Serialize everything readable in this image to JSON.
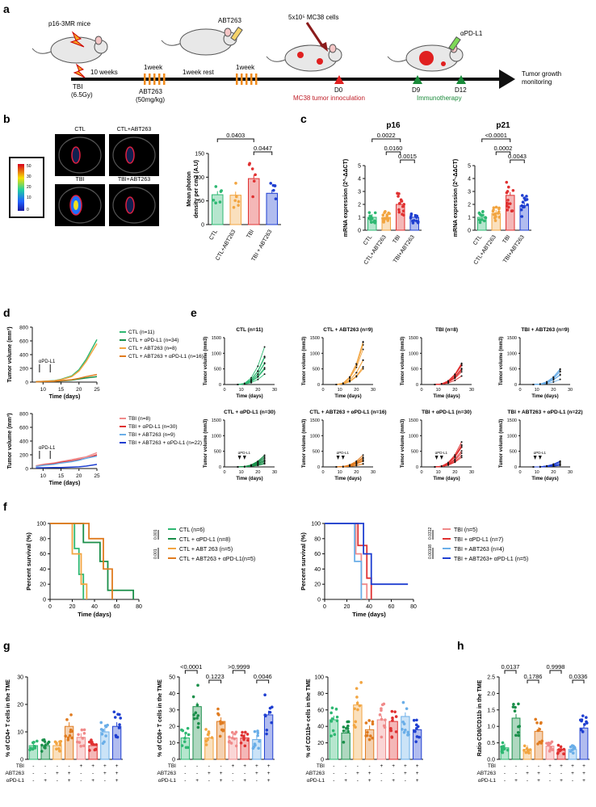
{
  "colors": {
    "ctl": "#2eb872",
    "ctl_apd": "#1a8f4a",
    "abt": "#f2a541",
    "abt_apd": "#e07b1f",
    "tbi": "#f08a8a",
    "tbi_apd": "#e03131",
    "tbiabt": "#6aaee8",
    "tbiabt_apd": "#1f3fd1",
    "red": "#c0202a",
    "green": "#1a8a3a"
  },
  "panels": {
    "a": "a",
    "b": "b",
    "c": "c",
    "d": "d",
    "e": "e",
    "f": "f",
    "g": "g",
    "h": "h"
  },
  "a": {
    "mice_label": "p16-3MR mice",
    "weeks10": "10 weeks",
    "tbi": "TBI",
    "tbi_dose": "(6.5Gy)",
    "abt_top": "ABT263",
    "wk1a": "1week",
    "wk1b": "1week",
    "rest": "1week rest",
    "abt_dose": "ABT263",
    "abt_dose2": "(50mg/kg)",
    "cells": "5x10⁵ MC38 cells",
    "d0": "D0",
    "inoc": "MC38 tumor innoculation",
    "d9": "D9",
    "d12": "D12",
    "immuno": "Immunotherapy",
    "apdl1": "αPD-L1",
    "growth1": "Tumor growth",
    "growth2": "monitoring"
  },
  "b": {
    "images": [
      "CTL",
      "CTL+ABT263",
      "TBI",
      "TBI+ABT263"
    ],
    "scale": [
      "50",
      "30",
      "20",
      "10",
      "0"
    ],
    "ylabel1": "Mean photon",
    "ylabel2": "density per cm2 (A.U)",
    "yticks": [
      "0",
      "50",
      "100",
      "150"
    ],
    "p1": "0.0403",
    "p2": "0.0447",
    "chart_data": {
      "type": "bar",
      "categories": [
        "CTL",
        "CTL+ABT263",
        "TBI",
        "TBI + ABT263"
      ],
      "values": [
        63,
        62,
        97,
        66
      ],
      "ylim": [
        0,
        150
      ],
      "ylabel": "Mean photon density per cm2 (A.U)"
    }
  },
  "c": {
    "title1": "p16",
    "title2": "p21",
    "ylabel": "mRNA expression (2^-ΔΔCT)",
    "yticks": [
      "0",
      "1",
      "2",
      "3",
      "4",
      "5"
    ],
    "p16_p": [
      "0.0022",
      "0.0160",
      "0.0015"
    ],
    "p21_p": [
      "<0.0001",
      "0.0002",
      "0.0043"
    ],
    "chart_data": [
      {
        "type": "bar",
        "title": "p16",
        "categories": [
          "CTL",
          "CTL+ABT263",
          "TBI",
          "TBI+ABT263"
        ],
        "values": [
          1.0,
          1.0,
          2.0,
          1.0
        ],
        "ylim": [
          0,
          5
        ]
      },
      {
        "type": "bar",
        "title": "p21",
        "categories": [
          "CTL",
          "CTL+ABT263",
          "TBI",
          "TBI+ABT263"
        ],
        "values": [
          1.0,
          1.3,
          2.7,
          1.9
        ],
        "ylim": [
          0,
          5
        ]
      }
    ]
  },
  "d": {
    "ylabel": "Tumor volume (mm³)",
    "xlabel": "Time (days)",
    "yticks": [
      "0",
      "200",
      "400",
      "600",
      "800"
    ],
    "xticks": [
      "10",
      "15",
      "20",
      "25"
    ],
    "apdl1": "αPD-L1",
    "legend_top": [
      "CTL (n=11)",
      "CTL + αPD-L1 (n=34)",
      "CTL + ABT263 (n=8)",
      "CTL + ABT263 + αPD-L1 (n=16)"
    ],
    "legend_bot": [
      "TBI (n=8)",
      "TBI + αPD-L1 (n=30)",
      "TBI + ABT263 (n=9)",
      "TBI + ABT263 + αPD-L1 (n=22)"
    ],
    "chart_data": [
      {
        "type": "line",
        "x": [
          8,
          10,
          13,
          15,
          18,
          20,
          22,
          25
        ],
        "series": [
          {
            "name": "CTL (n=11)",
            "values": [
              5,
              10,
              20,
              40,
              90,
              180,
              330,
              620
            ]
          },
          {
            "name": "CTL + αPD-L1 (n=34)",
            "values": [
              5,
              8,
              12,
              18,
              30,
              45,
              60,
              80
            ]
          },
          {
            "name": "CTL + ABT263 (n=8)",
            "values": [
              5,
              10,
              18,
              35,
              80,
              160,
              300,
              560
            ]
          },
          {
            "name": "CTL + ABT263 + αPD-L1 (n=16)",
            "values": [
              5,
              8,
              12,
              20,
              35,
              55,
              80,
              110
            ]
          }
        ],
        "ylim": [
          0,
          800
        ]
      },
      {
        "type": "line",
        "x": [
          8,
          10,
          13,
          15,
          18,
          20,
          22,
          25
        ],
        "series": [
          {
            "name": "TBI (n=8)",
            "values": [
              40,
              60,
              80,
              100,
              130,
              150,
              170,
              230
            ]
          },
          {
            "name": "TBI + αPD-L1 (n=30)",
            "values": [
              30,
              50,
              70,
              90,
              110,
              130,
              150,
              200
            ]
          },
          {
            "name": "TBI + ABT263 (n=9)",
            "values": [
              30,
              45,
              60,
              80,
              100,
              120,
              150,
              180
            ]
          },
          {
            "name": "TBI + ABT263 + αPD-L1 (n=22)",
            "values": [
              10,
              12,
              15,
              15,
              20,
              25,
              35,
              60
            ]
          }
        ],
        "ylim": [
          0,
          800
        ]
      }
    ]
  },
  "e": {
    "titles": [
      "CTL (n=11)",
      "CTL + ABT263 (n=9)",
      "TBI (n=8)",
      "TBI + ABT263 (n=9)",
      "CTL + αPD-L1 (n=30)",
      "CTL + ABT263 + αPD-L1 (n=16)",
      "TBI + αPD-L1 (n=30)",
      "TBI + ABT263 + αPD-L1 (n=22)"
    ],
    "ylabels": [
      "Tumor volume (mm3)",
      "Tumor volume (mm3)",
      "Tumor volume (mm3)",
      "Tumor volume (mm3)",
      "Tumor volume (mm3)",
      "Tumor volume (mm3)",
      "Tumor volume (mm3)",
      "Tumor volume (mm3)"
    ],
    "xlabel": "Time (days)",
    "yticks": [
      "0",
      "500",
      "1000",
      "1500"
    ],
    "xticks": [
      "0",
      "10",
      "20",
      "30"
    ],
    "apd": "αPD-L1"
  },
  "f": {
    "ylabel": "Percent survival (%)",
    "xlabel": "Time (days)",
    "yticks": [
      "0",
      "20",
      "40",
      "60",
      "80",
      "100"
    ],
    "xticks": [
      "0",
      "20",
      "40",
      "60",
      "80"
    ],
    "legend_left": [
      "CTL (n=6)",
      "CTL + αPD-L1 (n=8)",
      "CTL + ABT 263 (n=5)",
      "CTL + ABT263 + αPD-L1(n=5)"
    ],
    "legend_right": [
      "TBI (n=5)",
      "TBI + αPD-L1 (n=7)",
      "TBI + ABT263 (n=4)",
      "TBI + ABT263+ αPD-L1 (n=5)"
    ],
    "p_left": [
      "0.001",
      "0.001"
    ],
    "p_right": [
      "0.0312",
      "0.00108"
    ]
  },
  "g": {
    "ylabels": [
      "% of CD4+ T cells in the TME",
      "% of CD8+ T cells in the TME",
      "% of CD11b+ cells in the TME"
    ],
    "rows": [
      "TBI",
      "ABT263",
      "αPD-L1"
    ],
    "tbi": [
      "-",
      "-",
      "-",
      "-",
      "+",
      "+",
      "+",
      "+"
    ],
    "abt": [
      "-",
      "-",
      "+",
      "+",
      "-",
      "-",
      "+",
      "+"
    ],
    "apd": [
      "-",
      "+",
      "-",
      "+",
      "-",
      "+",
      "-",
      "+"
    ],
    "cd4_yticks": [
      "0",
      "10",
      "20",
      "30"
    ],
    "cd8_yticks": [
      "0",
      "10",
      "20",
      "30",
      "40",
      "50"
    ],
    "cd11_yticks": [
      "0",
      "20",
      "40",
      "60",
      "80",
      "100"
    ],
    "cd8_p": [
      "<0.0001",
      "0.1223",
      ">0.9999",
      "0.0046"
    ],
    "chart_data": [
      {
        "type": "bar",
        "title": "CD4",
        "values": [
          5,
          5,
          5,
          12,
          8,
          5,
          10,
          12
        ],
        "ylim": [
          0,
          30
        ]
      },
      {
        "type": "bar",
        "title": "CD8",
        "values": [
          13,
          32,
          13,
          23,
          13,
          13,
          12,
          27
        ],
        "ylim": [
          0,
          50
        ]
      },
      {
        "type": "bar",
        "title": "CD11b",
        "values": [
          48,
          32,
          66,
          36,
          48,
          46,
          52,
          36
        ],
        "ylim": [
          0,
          100
        ]
      }
    ]
  },
  "h": {
    "ylabel": "Ratio CD8/CD11b in the TME",
    "yticks": [
      "0.0",
      "0.5",
      "1.0",
      "1.5",
      "2.0",
      "2.5"
    ],
    "p": [
      "0.0137",
      "0.1786",
      "0.9998",
      "0.0336"
    ],
    "chart_data": {
      "type": "bar",
      "values": [
        0.35,
        1.25,
        0.3,
        0.85,
        0.4,
        0.3,
        0.3,
        0.95
      ],
      "ylim": [
        0,
        2.5
      ]
    }
  }
}
